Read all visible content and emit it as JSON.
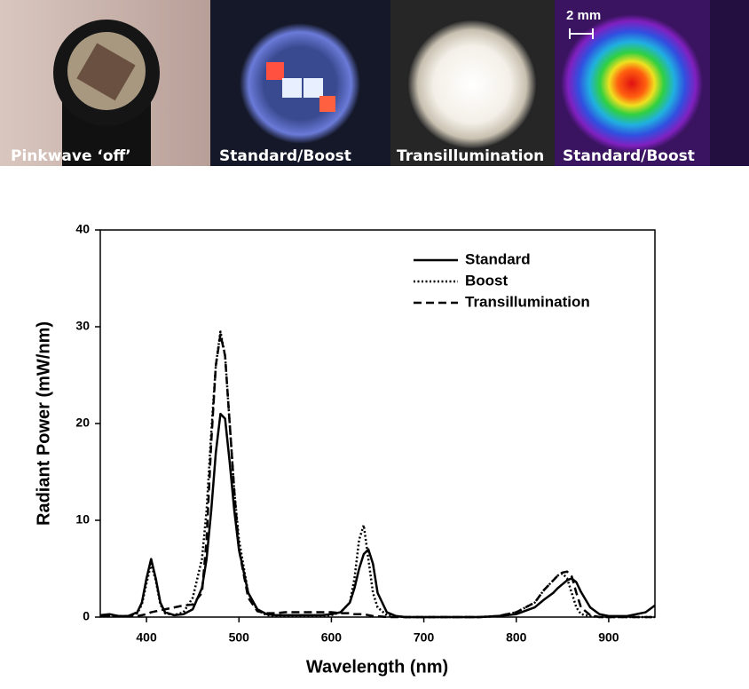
{
  "panels": [
    {
      "caption": "Pinkwave ‘off’"
    },
    {
      "caption": "Standard/Boost"
    },
    {
      "caption": "Transillumination"
    },
    {
      "caption": "Standard/Boost"
    }
  ],
  "scale_bar": "2 mm",
  "chart_data": {
    "type": "line",
    "xlabel": "Wavelength (nm)",
    "ylabel": "Radiant Power (mW/nm)",
    "x": [
      350,
      360,
      370,
      380,
      390,
      395,
      400,
      405,
      410,
      415,
      420,
      430,
      440,
      450,
      460,
      465,
      470,
      475,
      480,
      485,
      490,
      495,
      500,
      510,
      520,
      530,
      540,
      550,
      560,
      570,
      580,
      590,
      600,
      610,
      620,
      625,
      630,
      635,
      640,
      645,
      650,
      660,
      670,
      680,
      690,
      700,
      720,
      740,
      760,
      780,
      800,
      820,
      830,
      840,
      845,
      850,
      855,
      860,
      865,
      870,
      880,
      890,
      900,
      920,
      940,
      950
    ],
    "series": [
      {
        "name": "Standard",
        "color": "#000000",
        "line_style": "solid",
        "values": [
          0.2,
          0.3,
          0.1,
          0.1,
          0.5,
          1.5,
          4,
          6,
          4,
          1.5,
          0.5,
          0.2,
          0.3,
          0.8,
          3,
          6,
          11,
          17,
          21,
          20.5,
          16,
          11,
          7,
          2.5,
          0.8,
          0.3,
          0.2,
          0.2,
          0.2,
          0.2,
          0.2,
          0.2,
          0.3,
          0.5,
          1.5,
          3,
          5,
          6.5,
          7,
          5.5,
          2.5,
          0.5,
          0.1,
          0,
          0,
          0,
          0,
          0,
          0,
          0.1,
          0.3,
          1,
          1.8,
          2.5,
          3,
          3.4,
          3.8,
          4,
          3.6,
          2.6,
          1,
          0.3,
          0.1,
          0.1,
          0.5,
          1.2
        ]
      },
      {
        "name": "Boost",
        "color": "#000000",
        "line_style": "dotted",
        "values": [
          0.1,
          0.1,
          0.1,
          0.1,
          0.4,
          1.3,
          3.5,
          5.5,
          3.8,
          1.3,
          0.4,
          0.2,
          0.5,
          2,
          6,
          11,
          19,
          26,
          29.5,
          27,
          20,
          13,
          8,
          2.5,
          0.7,
          0.2,
          0.1,
          0.1,
          0.1,
          0.1,
          0.1,
          0.1,
          0.2,
          0.5,
          1.5,
          4,
          8,
          9.5,
          6,
          2.5,
          1,
          0.2,
          0.1,
          0,
          0,
          0,
          0,
          0,
          0,
          0.1,
          0.5,
          1.5,
          2.8,
          3.8,
          4.3,
          4.5,
          4,
          2.5,
          1,
          0.3,
          0.1,
          0,
          0,
          0,
          0,
          0
        ]
      },
      {
        "name": "Transillumination",
        "color": "#000000",
        "line_style": "dashed",
        "values": [
          0.1,
          0.1,
          0.1,
          0.1,
          0.1,
          0.2,
          0.3,
          0.5,
          0.6,
          0.7,
          0.8,
          1,
          1.2,
          1.3,
          2.5,
          8,
          18,
          26,
          29.2,
          27,
          20,
          13,
          7,
          2,
          0.6,
          0.4,
          0.4,
          0.5,
          0.5,
          0.5,
          0.5,
          0.5,
          0.5,
          0.4,
          0.4,
          0.3,
          0.3,
          0.3,
          0.2,
          0.1,
          0.1,
          0,
          0,
          0,
          0,
          0,
          0,
          0,
          0,
          0.1,
          0.5,
          1.5,
          2.8,
          3.8,
          4.3,
          4.6,
          4.7,
          4.2,
          2.5,
          1,
          0.2,
          0,
          0,
          0,
          0,
          0
        ]
      }
    ],
    "xlim": [
      350,
      950
    ],
    "xticks": [
      400,
      500,
      600,
      700,
      800,
      900
    ],
    "ylim": [
      0,
      40
    ],
    "yticks": [
      0,
      10,
      20,
      30,
      40
    ],
    "grid": false,
    "legend": "upper right"
  }
}
